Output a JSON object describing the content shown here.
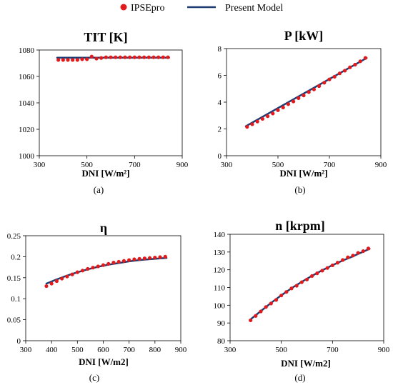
{
  "legend": {
    "items": [
      {
        "label": "IPSEpro",
        "marker": "dot",
        "color": "#e31a1c"
      },
      {
        "label": "Present Model",
        "marker": "line",
        "color": "#1f3c73"
      }
    ]
  },
  "colors": {
    "points": "#e31a1c",
    "model": "#1f3c73",
    "axis": "#000000"
  },
  "chart_data": [
    {
      "type": "scatter",
      "title": "TIT [K]",
      "xlabel": "DNI [W/m²]",
      "ylabel": "",
      "caption": "(a)",
      "xlim": [
        300,
        900
      ],
      "ylim": [
        1000,
        1080
      ],
      "xticks": [
        300,
        500,
        700,
        900
      ],
      "yticks": [
        1000,
        1020,
        1040,
        1060,
        1080
      ],
      "grid": false,
      "series": [
        {
          "name": "IPSEpro",
          "kind": "points",
          "x": [
            380,
            400,
            420,
            440,
            460,
            480,
            500,
            520,
            540,
            560,
            580,
            600,
            620,
            640,
            660,
            680,
            700,
            720,
            740,
            760,
            780,
            800,
            820,
            840
          ],
          "y": [
            1072.5,
            1072.5,
            1072.5,
            1072.5,
            1072.5,
            1073,
            1073,
            1075,
            1073.5,
            1074,
            1074.5,
            1074.5,
            1074.5,
            1074.5,
            1074.5,
            1074.5,
            1074.5,
            1074.5,
            1074.5,
            1074.5,
            1074.5,
            1074.5,
            1074.5,
            1074.5
          ]
        },
        {
          "name": "Present Model",
          "kind": "line",
          "x": [
            375,
            845
          ],
          "y": [
            1074.2,
            1074.2
          ]
        }
      ]
    },
    {
      "type": "scatter",
      "title": "P [kW]",
      "xlabel": "DNI [W/m²]",
      "ylabel": "",
      "caption": "(b)",
      "xlim": [
        300,
        900
      ],
      "ylim": [
        0,
        8
      ],
      "xticks": [
        300,
        500,
        700,
        900
      ],
      "yticks": [
        0,
        2,
        4,
        6,
        8
      ],
      "grid": false,
      "series": [
        {
          "name": "IPSEpro",
          "kind": "points",
          "x": [
            380,
            400,
            420,
            440,
            460,
            480,
            500,
            520,
            540,
            560,
            580,
            600,
            620,
            640,
            660,
            680,
            700,
            720,
            740,
            760,
            780,
            800,
            820,
            840
          ],
          "y": [
            2.15,
            2.35,
            2.55,
            2.75,
            2.95,
            3.15,
            3.4,
            3.6,
            3.85,
            4.05,
            4.3,
            4.5,
            4.75,
            4.95,
            5.2,
            5.45,
            5.7,
            5.9,
            6.15,
            6.35,
            6.6,
            6.8,
            7.05,
            7.3
          ]
        },
        {
          "name": "Present Model",
          "kind": "line",
          "x": [
            375,
            845
          ],
          "y": [
            2.2,
            7.3
          ]
        }
      ]
    },
    {
      "type": "scatter",
      "title": "η",
      "xlabel": "DNI [W/m2]",
      "ylabel": "",
      "caption": "(c)",
      "xlim": [
        300,
        900
      ],
      "ylim": [
        0,
        0.25
      ],
      "xticks": [
        300,
        400,
        500,
        600,
        700,
        800,
        900
      ],
      "yticks": [
        0,
        0.05,
        0.1,
        0.15,
        0.2,
        0.25
      ],
      "grid": false,
      "series": [
        {
          "name": "IPSEpro",
          "kind": "points",
          "x": [
            380,
            400,
            420,
            440,
            460,
            480,
            500,
            520,
            540,
            560,
            580,
            600,
            620,
            640,
            660,
            680,
            700,
            720,
            740,
            760,
            780,
            800,
            820,
            840
          ],
          "y": [
            0.13,
            0.136,
            0.142,
            0.148,
            0.153,
            0.158,
            0.163,
            0.167,
            0.171,
            0.174,
            0.177,
            0.18,
            0.183,
            0.186,
            0.188,
            0.19,
            0.192,
            0.194,
            0.195,
            0.196,
            0.197,
            0.198,
            0.199,
            0.2
          ]
        },
        {
          "name": "Present Model",
          "kind": "line",
          "x": [
            380,
            420,
            460,
            500,
            540,
            580,
            620,
            660,
            700,
            740,
            780,
            820,
            845
          ],
          "y": [
            0.136,
            0.146,
            0.155,
            0.163,
            0.17,
            0.176,
            0.181,
            0.185,
            0.189,
            0.192,
            0.194,
            0.196,
            0.197
          ]
        }
      ]
    },
    {
      "type": "scatter",
      "title": "n [krpm]",
      "xlabel": "DNI [W/m2]",
      "ylabel": "",
      "caption": "(d)",
      "xlim": [
        300,
        900
      ],
      "ylim": [
        80,
        140
      ],
      "xticks": [
        300,
        500,
        700,
        900
      ],
      "yticks": [
        80,
        90,
        100,
        110,
        120,
        130,
        140
      ],
      "grid": false,
      "series": [
        {
          "name": "IPSEpro",
          "kind": "points",
          "x": [
            380,
            400,
            420,
            440,
            460,
            480,
            500,
            520,
            540,
            560,
            580,
            600,
            620,
            640,
            660,
            680,
            700,
            720,
            740,
            760,
            780,
            800,
            820,
            840
          ],
          "y": [
            91.5,
            94,
            96.5,
            99,
            101,
            103,
            105.5,
            107.5,
            109.5,
            111,
            113,
            114.5,
            116.5,
            118,
            119.5,
            121,
            122.5,
            124,
            125.5,
            127,
            128,
            129.5,
            130.5,
            132
          ]
        },
        {
          "name": "Present Model",
          "kind": "line",
          "x": [
            378,
            420,
            460,
            500,
            540,
            580,
            620,
            660,
            700,
            740,
            780,
            820,
            845
          ],
          "y": [
            91.8,
            96.7,
            101.3,
            105.6,
            109.6,
            113.2,
            116.6,
            119.7,
            122.6,
            125.2,
            127.6,
            130.2,
            131.8
          ]
        }
      ]
    }
  ]
}
